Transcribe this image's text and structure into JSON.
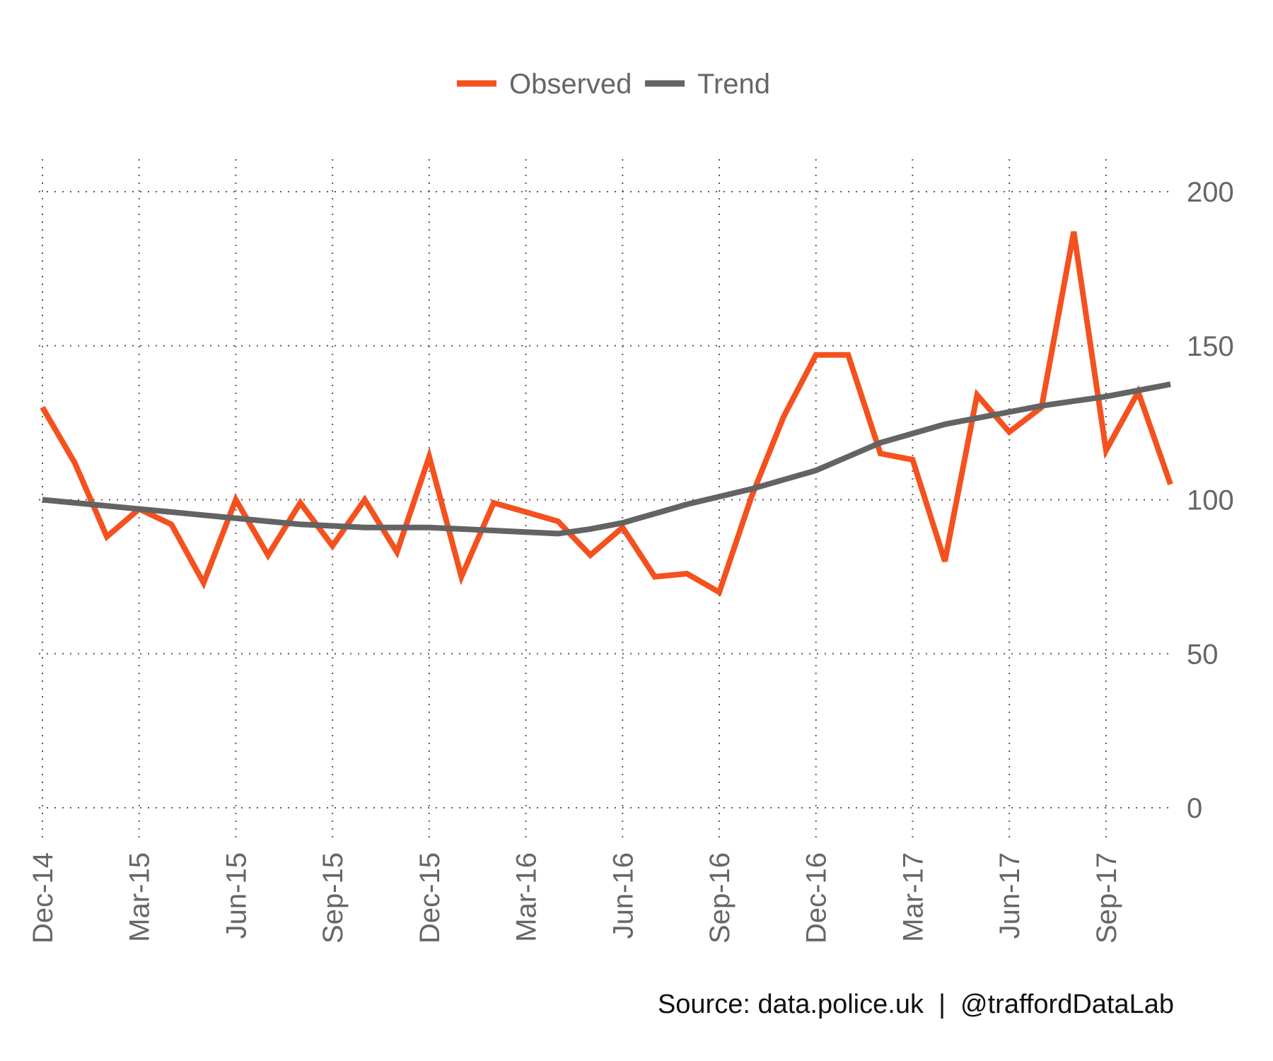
{
  "chart_data": {
    "type": "line",
    "caption": "Source: data.police.uk  |  @traffordDataLab",
    "legend_position": "top",
    "grid": true,
    "grid_style": "dotted",
    "y_axis_side": "right",
    "ylim": [
      0,
      200
    ],
    "y_ticks": [
      0,
      50,
      100,
      150,
      200
    ],
    "x_tick_labels": [
      "Dec-14",
      "Mar-15",
      "Jun-15",
      "Sep-15",
      "Dec-15",
      "Mar-16",
      "Jun-16",
      "Sep-16",
      "Dec-16",
      "Mar-17",
      "Jun-17",
      "Sep-17"
    ],
    "x": [
      "Dec-14",
      "Jan-15",
      "Feb-15",
      "Mar-15",
      "Apr-15",
      "May-15",
      "Jun-15",
      "Jul-15",
      "Aug-15",
      "Sep-15",
      "Oct-15",
      "Nov-15",
      "Dec-15",
      "Jan-16",
      "Feb-16",
      "Mar-16",
      "Apr-16",
      "May-16",
      "Jun-16",
      "Jul-16",
      "Aug-16",
      "Sep-16",
      "Oct-16",
      "Nov-16",
      "Dec-16",
      "Jan-17",
      "Feb-17",
      "Mar-17",
      "Apr-17",
      "May-17",
      "Jun-17",
      "Jul-17",
      "Aug-17",
      "Sep-17",
      "Oct-17",
      "Nov-17"
    ],
    "series": [
      {
        "name": "Observed",
        "color": "#f4511e",
        "values": [
          130,
          112,
          88,
          97,
          92,
          73,
          100,
          82,
          99,
          85,
          100,
          83,
          114,
          75,
          99,
          96,
          93,
          82,
          91,
          75,
          76,
          70,
          101,
          127,
          147,
          147,
          115,
          113,
          80,
          134,
          122,
          130,
          187,
          116,
          135,
          105
        ]
      },
      {
        "name": "Trend",
        "color": "#636363",
        "values": [
          100,
          99,
          98,
          97,
          96,
          95,
          94,
          93,
          92,
          91.5,
          91,
          91,
          91,
          90.5,
          90,
          89.5,
          89,
          90.5,
          92.5,
          95.5,
          98.5,
          101,
          103.5,
          106.5,
          109.5,
          114,
          118.5,
          121.5,
          124.5,
          126.5,
          128.5,
          130.5,
          132,
          133.5,
          135.5,
          137.5
        ]
      }
    ]
  }
}
